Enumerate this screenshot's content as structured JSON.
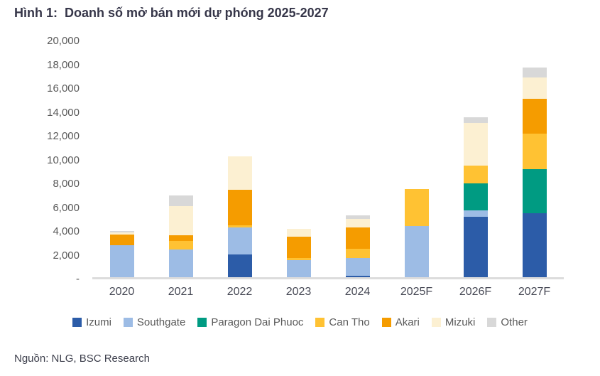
{
  "title": "Hình 1:  Doanh số mở bán mới dự phóng 2025-2027",
  "source": "Nguồn: NLG, BSC Research",
  "chart_data": {
    "type": "bar",
    "stacked": true,
    "title": "Hình 1: Doanh số mở bán mới dự phóng 2025-2027",
    "xlabel": "",
    "ylabel": "",
    "ylim": [
      0,
      20000
    ],
    "ytick_step": 2000,
    "grid": false,
    "legend_position": "bottom",
    "categories": [
      "2020",
      "2021",
      "2022",
      "2023",
      "2024",
      "2025F",
      "2026F",
      "2027F"
    ],
    "ytick_labels": [
      "20,000",
      "18,000",
      "16,000",
      "14,000",
      "12,000",
      "10,000",
      "8,000",
      "6,000",
      "4,000",
      "2,000",
      "-"
    ],
    "series": [
      {
        "name": "Izumi",
        "color": "#2C5CA8",
        "values": [
          0,
          0,
          1900,
          0,
          150,
          0,
          5100,
          5350
        ]
      },
      {
        "name": "Southgate",
        "color": "#9DBCE5",
        "values": [
          2700,
          2350,
          2300,
          1450,
          1450,
          4300,
          500,
          0
        ]
      },
      {
        "name": "Paragon Dai Phuoc",
        "color": "#009B82",
        "values": [
          0,
          0,
          0,
          0,
          0,
          0,
          2300,
          3700
        ]
      },
      {
        "name": "Can Tho",
        "color": "#FFC233",
        "values": [
          0,
          680,
          150,
          150,
          780,
          3100,
          1500,
          3000
        ]
      },
      {
        "name": "Akari",
        "color": "#F59C00",
        "values": [
          900,
          500,
          3000,
          1800,
          1800,
          0,
          0,
          2950
        ]
      },
      {
        "name": "Mizuki",
        "color": "#FCF0D2",
        "values": [
          150,
          2430,
          2800,
          680,
          700,
          0,
          3550,
          1800
        ]
      },
      {
        "name": "Other",
        "color": "#D8D8D8",
        "values": [
          150,
          900,
          0,
          0,
          300,
          0,
          500,
          800
        ]
      }
    ],
    "totals": [
      3900,
      6860,
      10150,
      4080,
      5180,
      7400,
      13450,
      17600
    ]
  }
}
